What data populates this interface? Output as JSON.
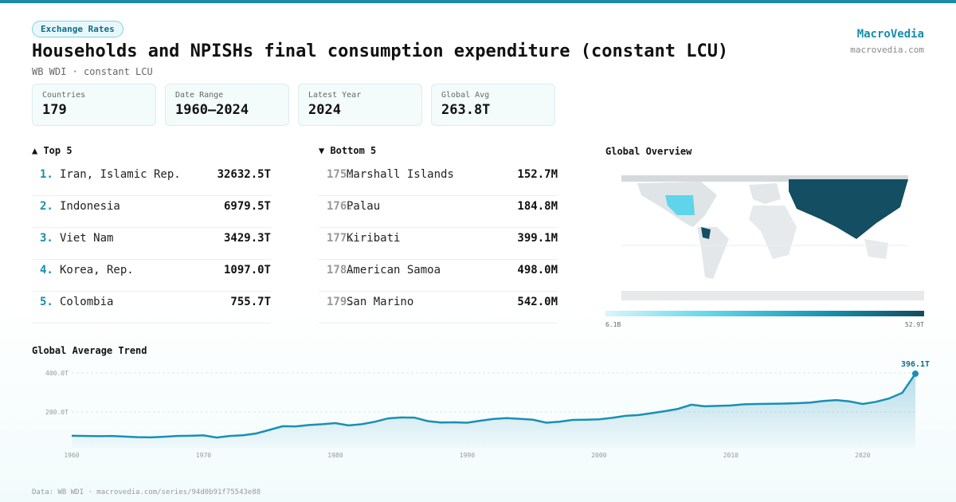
{
  "badge": "Exchange Rates",
  "header": {
    "title": "Households and NPISHs final consumption expenditure (constant LCU)",
    "subtitle": "WB WDI · constant LCU",
    "brand": "MacroVedia",
    "site": "macrovedia.com"
  },
  "stats": [
    {
      "label": "Countries",
      "value": "179"
    },
    {
      "label": "Date Range",
      "value": "1960–2024"
    },
    {
      "label": "Latest Year",
      "value": "2024"
    },
    {
      "label": "Global Avg",
      "value": "263.8T"
    }
  ],
  "top": {
    "title": "▲ Top 5",
    "rows": [
      {
        "rank": "1.",
        "name": "Iran, Islamic Rep.",
        "value": "32632.5T"
      },
      {
        "rank": "2.",
        "name": "Indonesia",
        "value": "6979.5T"
      },
      {
        "rank": "3.",
        "name": "Viet Nam",
        "value": "3429.3T"
      },
      {
        "rank": "4.",
        "name": "Korea, Rep.",
        "value": "1097.0T"
      },
      {
        "rank": "5.",
        "name": "Colombia",
        "value": "755.7T"
      }
    ]
  },
  "bottom": {
    "title": "▼ Bottom 5",
    "rows": [
      {
        "rank": "175.",
        "name": "Marshall Islands",
        "value": "152.7M"
      },
      {
        "rank": "176.",
        "name": "Palau",
        "value": "184.8M"
      },
      {
        "rank": "177.",
        "name": "Kiribati",
        "value": "399.1M"
      },
      {
        "rank": "178.",
        "name": "American Samoa",
        "value": "498.0M"
      },
      {
        "rank": "179.",
        "name": "San Marino",
        "value": "542.0M"
      }
    ]
  },
  "map": {
    "title": "Global Overview",
    "legend_min": "6.1B",
    "legend_max": "52.9T"
  },
  "chart_data": {
    "type": "line",
    "title": "Global Average Trend",
    "color": "#1a8fb5",
    "x": [
      1960,
      1961,
      1962,
      1963,
      1964,
      1965,
      1966,
      1967,
      1968,
      1969,
      1970,
      1971,
      1972,
      1973,
      1974,
      1975,
      1976,
      1977,
      1978,
      1979,
      1980,
      1981,
      1982,
      1983,
      1984,
      1985,
      1986,
      1987,
      1988,
      1989,
      1990,
      1991,
      1992,
      1993,
      1994,
      1995,
      1996,
      1997,
      1998,
      1999,
      2000,
      2001,
      2002,
      2003,
      2004,
      2005,
      2006,
      2007,
      2008,
      2009,
      2010,
      2011,
      2012,
      2013,
      2014,
      2015,
      2016,
      2017,
      2018,
      2019,
      2020,
      2021,
      2022,
      2023,
      2024
    ],
    "values": [
      78,
      77,
      76,
      77,
      74,
      71,
      70,
      73,
      77,
      78,
      80,
      69,
      77,
      81,
      90,
      108,
      127,
      126,
      133,
      137,
      143,
      131,
      137,
      150,
      167,
      172,
      171,
      153,
      146,
      147,
      145,
      155,
      164,
      168,
      165,
      160,
      145,
      150,
      159,
      160,
      162,
      170,
      180,
      184,
      194,
      204,
      216,
      237,
      229,
      231,
      233,
      239,
      241,
      242,
      243,
      245,
      248,
      256,
      261,
      254,
      241,
      252,
      269,
      298,
      396.1
    ],
    "annotation": "396.1T",
    "xlim": [
      1960,
      2024
    ],
    "xticks": [
      1960,
      1970,
      1980,
      1990,
      2000,
      2010,
      2020
    ],
    "ylim": [
      0,
      400
    ],
    "yticks": [
      {
        "value": 200,
        "label": "200.0T"
      },
      {
        "value": 400,
        "label": "400.0T"
      }
    ],
    "grid": true
  },
  "footer": "Data: WB WDI · macrovedia.com/series/94d0b91f75543e88"
}
